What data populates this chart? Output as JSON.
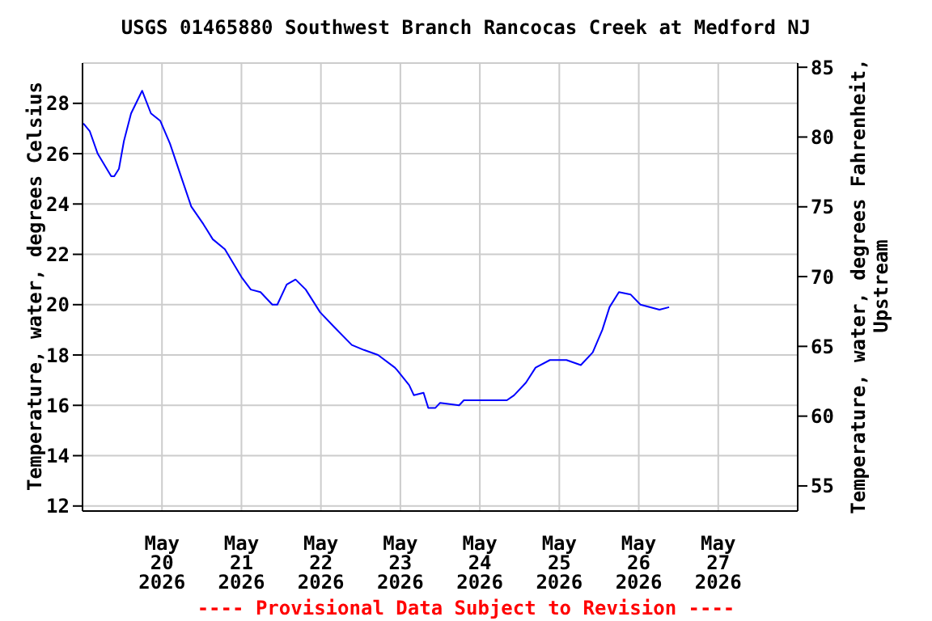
{
  "chart_data": {
    "type": "line",
    "title": "USGS 01465880 Southwest Branch Rancocas Creek at Medford NJ",
    "ylabel": "Temperature, water, degrees Celsius",
    "y2label": "Temperature, water, degrees Fahrenheit, Upstream",
    "annotations": [
      "---- Provisional Data Subject to Revision ----"
    ],
    "xlim": [
      "2026-05-19T00:00",
      "2026-05-28T00:00"
    ],
    "xticks": [
      {
        "value": "2026-05-20",
        "label": "May\n20\n2026"
      },
      {
        "value": "2026-05-21",
        "label": "May\n21\n2026"
      },
      {
        "value": "2026-05-22",
        "label": "May\n22\n2026"
      },
      {
        "value": "2026-05-23",
        "label": "May\n23\n2026"
      },
      {
        "value": "2026-05-24",
        "label": "May\n24\n2026"
      },
      {
        "value": "2026-05-25",
        "label": "May\n25\n2026"
      },
      {
        "value": "2026-05-26",
        "label": "May\n26\n2026"
      },
      {
        "value": "2026-05-27",
        "label": "May\n27\n2026"
      }
    ],
    "ylim": [
      11.8,
      29.6
    ],
    "yticks": [
      12,
      14,
      16,
      18,
      20,
      22,
      24,
      26,
      28
    ],
    "y2lim": [
      53.2,
      85.3
    ],
    "y2ticks": [
      55,
      60,
      65,
      70,
      75,
      80,
      85
    ],
    "grid": true,
    "legend": false,
    "marker": "none",
    "line_style": "solid",
    "series": [
      {
        "color": "#0000ff",
        "x": [
          "2026-05-19T00:15",
          "2026-05-19T02:10",
          "2026-05-19T04:35",
          "2026-05-19T08:40",
          "2026-05-19T09:35",
          "2026-05-19T11:00",
          "2026-05-19T12:30",
          "2026-05-19T14:40",
          "2026-05-19T18:00",
          "2026-05-19T20:40",
          "2026-05-19T23:30",
          "2026-05-20T02:25",
          "2026-05-20T06:00",
          "2026-05-20T08:50",
          "2026-05-20T12:30",
          "2026-05-20T15:20",
          "2026-05-20T19:00",
          "2026-05-21T00:00",
          "2026-05-21T02:50",
          "2026-05-21T05:45",
          "2026-05-21T09:20",
          "2026-05-21T10:50",
          "2026-05-21T13:40",
          "2026-05-21T16:20",
          "2026-05-21T19:25",
          "2026-05-21T23:45",
          "2026-05-22T04:05",
          "2026-05-22T09:20",
          "2026-05-22T13:00",
          "2026-05-22T17:15",
          "2026-05-22T22:20",
          "2026-05-22T23:00",
          "2026-05-23T02:40",
          "2026-05-23T04:05",
          "2026-05-23T07:00",
          "2026-05-23T08:25",
          "2026-05-23T10:35",
          "2026-05-23T12:00",
          "2026-05-23T17:45",
          "2026-05-23T19:10",
          "2026-05-24T08:10",
          "2026-05-24T10:20",
          "2026-05-24T13:55",
          "2026-05-24T16:50",
          "2026-05-24T21:10",
          "2026-05-25T02:10",
          "2026-05-25T06:30",
          "2026-05-25T10:05",
          "2026-05-25T13:00",
          "2026-05-25T15:10",
          "2026-05-25T18:00",
          "2026-05-25T21:35",
          "2026-05-26T00:30",
          "2026-05-26T06:15",
          "2026-05-26T09:10"
        ],
        "values": [
          27.2,
          26.9,
          26.0,
          25.1,
          25.1,
          25.4,
          26.5,
          27.6,
          28.5,
          27.6,
          27.3,
          26.4,
          25.0,
          23.9,
          23.2,
          22.6,
          22.2,
          21.1,
          20.6,
          20.5,
          20.0,
          20.0,
          20.8,
          21.0,
          20.6,
          19.7,
          19.1,
          18.4,
          18.2,
          18.0,
          17.5,
          17.4,
          16.8,
          16.4,
          16.5,
          15.9,
          15.9,
          16.1,
          16.0,
          16.2,
          16.2,
          16.4,
          16.9,
          17.5,
          17.8,
          17.8,
          17.6,
          18.1,
          19.0,
          19.9,
          20.5,
          20.4,
          20.0,
          19.8,
          19.9
        ]
      }
    ]
  }
}
